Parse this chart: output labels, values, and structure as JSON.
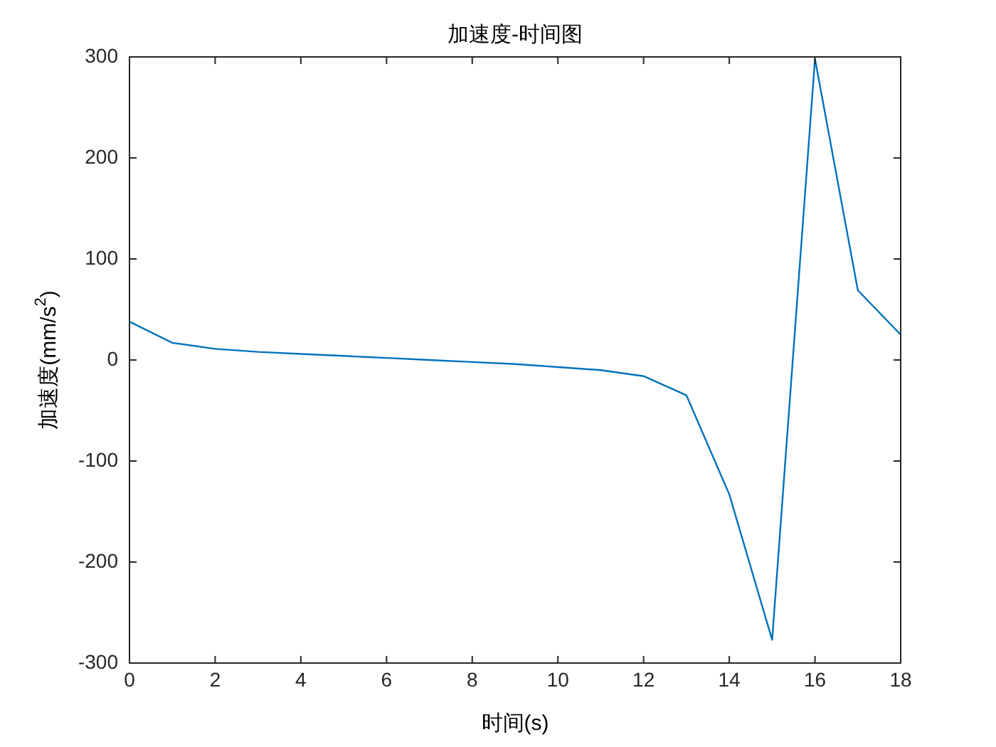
{
  "chart_data": {
    "type": "line",
    "title": "加速度-时间图",
    "xlabel": "时间(s)",
    "ylabel": "加速度(mm/s$^{2}$)",
    "x": [
      0,
      1,
      2,
      3,
      4,
      5,
      6,
      7,
      8,
      9,
      10,
      11,
      12,
      13,
      14,
      15,
      16,
      17,
      18
    ],
    "series": [
      {
        "color": "#0072bd",
        "values": [
          38,
          17,
          11,
          8,
          6,
          4,
          2,
          0,
          -2,
          -4,
          -7,
          -10,
          -16,
          -35,
          -133,
          -277,
          298,
          69,
          25
        ]
      }
    ],
    "xlim": [
      0,
      18
    ],
    "xticks": [
      0,
      2,
      4,
      6,
      8,
      10,
      12,
      14,
      16,
      18
    ],
    "ylim": [
      -300,
      300
    ],
    "yticks": [
      -300,
      -200,
      -100,
      0,
      100,
      200,
      300
    ]
  }
}
